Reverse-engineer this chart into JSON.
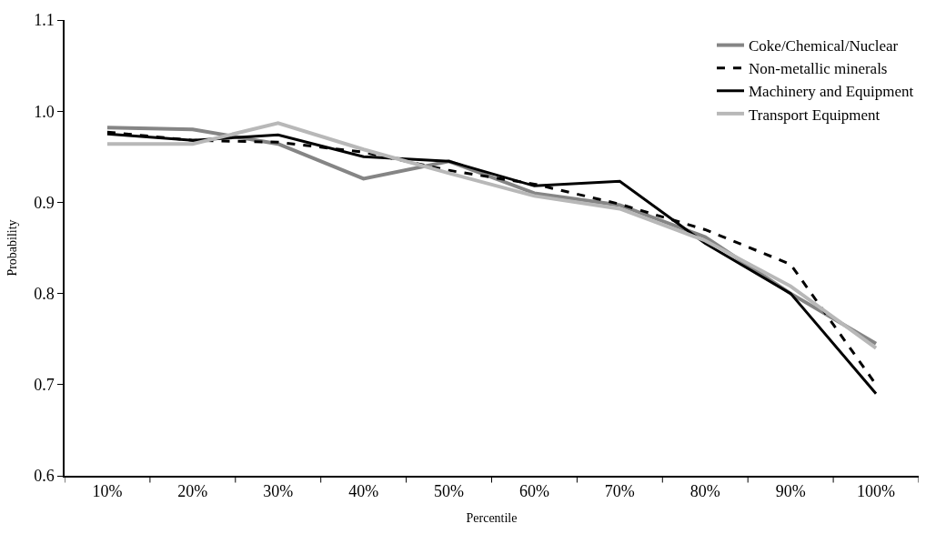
{
  "chart_data": {
    "type": "line",
    "xlabel": "Percentile",
    "ylabel": "Probability",
    "categories": [
      "10%",
      "20%",
      "30%",
      "40%",
      "50%",
      "60%",
      "70%",
      "80%",
      "90%",
      "100%"
    ],
    "ylim": [
      0.6,
      1.1
    ],
    "yticks": [
      {
        "value": 0.6,
        "label": "0.6"
      },
      {
        "value": 0.7,
        "label": "0.7"
      },
      {
        "value": 0.8,
        "label": "0.8"
      },
      {
        "value": 0.9,
        "label": "0.9"
      },
      {
        "value": 1.0,
        "label": "1.0"
      },
      {
        "value": 1.1,
        "label": "1.1"
      }
    ],
    "legend": "top right",
    "marker": "none",
    "series": [
      {
        "name": "Coke/Chemical/Nuclear",
        "color": "#858585",
        "line_style": "solid",
        "values": [
          0.982,
          0.98,
          0.964,
          0.926,
          0.945,
          0.91,
          0.897,
          0.862,
          0.8,
          0.745
        ]
      },
      {
        "name": "Non-metallic minerals",
        "color": "#000000",
        "line_style": "dashed",
        "values": [
          0.977,
          0.968,
          0.966,
          0.955,
          0.935,
          0.92,
          0.898,
          0.87,
          0.832,
          0.7
        ]
      },
      {
        "name": "Machinery and Equipment",
        "color": "#000000",
        "line_style": "solid",
        "values": [
          0.975,
          0.968,
          0.974,
          0.95,
          0.945,
          0.918,
          0.923,
          0.855,
          0.8,
          0.69
        ]
      },
      {
        "name": "Transport Equipment",
        "color": "#b8b8b8",
        "line_style": "solid",
        "values": [
          0.964,
          0.964,
          0.987,
          0.958,
          0.932,
          0.907,
          0.893,
          0.858,
          0.808,
          0.74
        ]
      }
    ]
  }
}
